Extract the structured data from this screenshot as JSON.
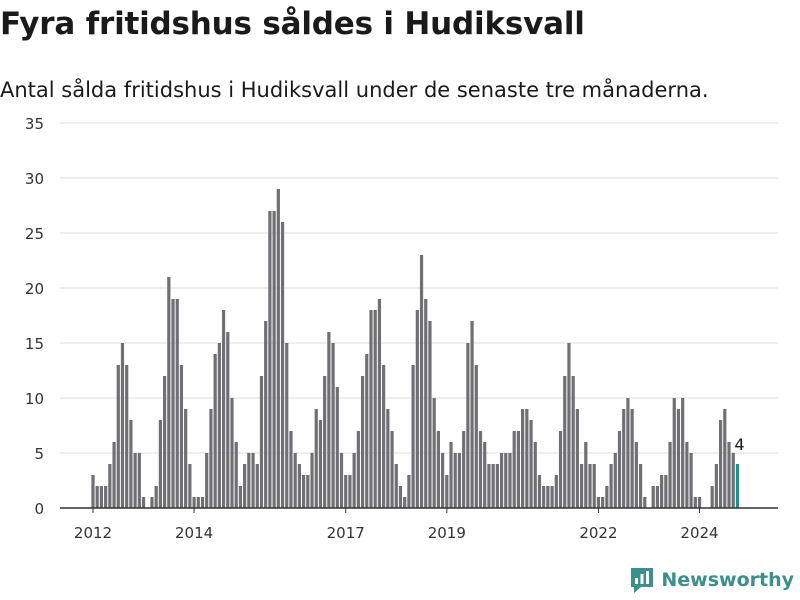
{
  "title": "Fyra fritidshus såldes i Hudiksvall",
  "subtitle": "Antal sålda fritidshus i Hudiksvall under de senaste tre månaderna.",
  "brand": {
    "label": "Newsworthy",
    "icon": "newsworthy-logo-icon",
    "color": "#3c8f8c"
  },
  "colors": {
    "bar": "#6f6f74",
    "highlight": "#1b938c",
    "grid": "#dcdcdc",
    "axis": "#333333"
  },
  "chart_data": {
    "type": "bar",
    "title": "Fyra fritidshus såldes i Hudiksvall",
    "xlabel": "",
    "ylabel": "",
    "ylim": [
      0,
      35
    ],
    "yticks": [
      0,
      5,
      10,
      15,
      20,
      25,
      30,
      35
    ],
    "xticks": [
      2012,
      2014,
      2017,
      2019,
      2022,
      2024
    ],
    "grid": true,
    "x_start": "2012-01",
    "x_end": "2025-02",
    "values": [
      3,
      2,
      2,
      2,
      4,
      6,
      13,
      15,
      13,
      8,
      5,
      5,
      1,
      0,
      1,
      2,
      8,
      12,
      21,
      19,
      19,
      13,
      9,
      4,
      1,
      1,
      1,
      5,
      9,
      14,
      15,
      18,
      16,
      10,
      6,
      2,
      4,
      5,
      5,
      4,
      12,
      17,
      27,
      27,
      29,
      26,
      15,
      7,
      5,
      4,
      3,
      3,
      5,
      9,
      8,
      12,
      16,
      15,
      11,
      5,
      3,
      3,
      5,
      7,
      12,
      14,
      18,
      18,
      19,
      13,
      9,
      7,
      4,
      2,
      1,
      3,
      13,
      18,
      23,
      19,
      17,
      10,
      7,
      5,
      3,
      6,
      5,
      5,
      7,
      15,
      17,
      13,
      7,
      6,
      4,
      4,
      4,
      5,
      5,
      5,
      7,
      7,
      9,
      9,
      8,
      6,
      3,
      2,
      2,
      2,
      3,
      7,
      12,
      15,
      12,
      9,
      4,
      6,
      4,
      4,
      1,
      1,
      2,
      4,
      5,
      7,
      9,
      10,
      9,
      6,
      4,
      1,
      0,
      2,
      2,
      3,
      3,
      6,
      10,
      9,
      10,
      6,
      5,
      1,
      1,
      0,
      0,
      2,
      4,
      8,
      9,
      6,
      5,
      4
    ],
    "annotation": {
      "text": "4"
    }
  }
}
